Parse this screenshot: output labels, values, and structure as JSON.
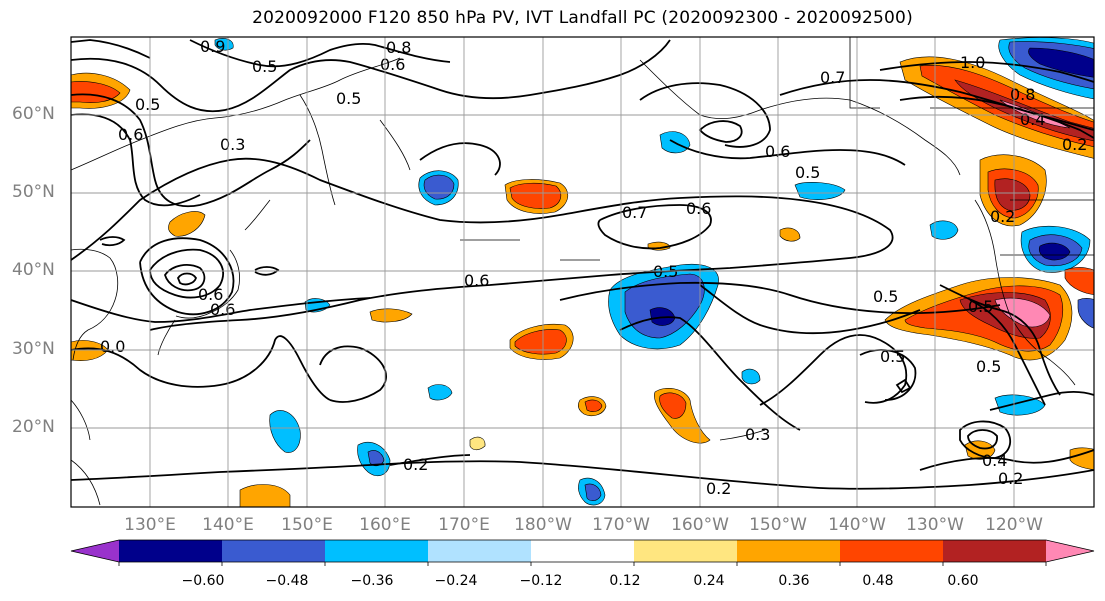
{
  "title": "2020092000 F120 850 hPa PV, IVT Landfall PC (2020092300 - 2020092500)",
  "latitude_labels": [
    "60°N",
    "50°N",
    "40°N",
    "30°N",
    "20°N"
  ],
  "longitude_labels": [
    "130°E",
    "140°E",
    "150°E",
    "160°E",
    "170°E",
    "180°W",
    "170°W",
    "160°W",
    "150°W",
    "140°W",
    "130°W",
    "120°W"
  ],
  "contour_labels": [
    "0.9",
    "0.5",
    "0.8",
    "0.6",
    "0.5",
    "0.5",
    "0.6",
    "0.3",
    "1.0",
    "0.7",
    "0.8",
    "0.4",
    "0.2",
    "0.6",
    "0.5",
    "0.7",
    "0.6",
    "0.2",
    "0.6",
    "0.6",
    "0.5",
    "0.5",
    "0.5",
    "0.5",
    "0.5",
    "0.3",
    "0.4",
    "0.2",
    "0.2",
    "0.2",
    "0.0",
    "0.6"
  ],
  "colorbar": {
    "colors": [
      "#9932cc",
      "#00008b",
      "#3a5bd0",
      "#00bfff",
      "#b0e2ff",
      "#ffffff",
      "#ffe680",
      "#ffa500",
      "#ff4500",
      "#b22222",
      "#ff88b4"
    ],
    "tick_labels": [
      "−0.60",
      "−0.48",
      "−0.36",
      "−0.24",
      "−0.12",
      "0.12",
      "0.24",
      "0.36",
      "0.48",
      "0.60"
    ]
  }
}
